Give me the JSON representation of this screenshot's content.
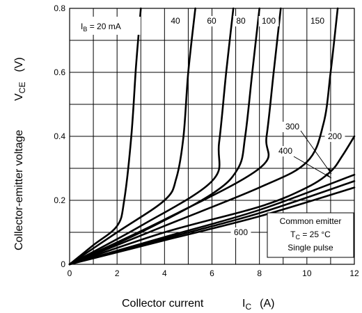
{
  "chart_data": {
    "type": "line",
    "xlabel": "Collector current",
    "xsymbol": "I",
    "xsymbol_sub": "C",
    "xunit": "(A)",
    "ylabel": "Collector-emitter voltage",
    "ysymbol": "V",
    "ysymbol_sub": "CE",
    "yunit": "(V)",
    "xlim": [
      0,
      12
    ],
    "ylim": [
      0,
      0.8
    ],
    "xticks": [
      0,
      2,
      4,
      6,
      8,
      10,
      12
    ],
    "yticks": [
      0,
      0.2,
      0.4,
      0.6,
      0.8
    ],
    "xtick_labels": [
      "0",
      "2",
      "4",
      "6",
      "8",
      "10",
      "12"
    ],
    "ytick_labels": [
      "0",
      "0.2",
      "0.4",
      "0.6",
      "0.8"
    ],
    "grid": true,
    "series": [
      {
        "name": "IB = 20 mA",
        "label": "",
        "x": [
          0,
          1,
          2,
          2.3,
          2.6,
          2.8,
          3.0
        ],
        "y": [
          0,
          0.06,
          0.12,
          0.2,
          0.4,
          0.62,
          0.8
        ]
      },
      {
        "name": "40",
        "label": "40",
        "x": [
          0,
          2,
          4,
          4.5,
          4.8,
          5.0,
          5.3
        ],
        "y": [
          0,
          0.1,
          0.2,
          0.27,
          0.4,
          0.6,
          0.8
        ]
      },
      {
        "name": "60",
        "label": "60",
        "x": [
          0,
          3,
          6,
          6.3,
          6.6,
          6.9
        ],
        "y": [
          0,
          0.12,
          0.26,
          0.38,
          0.6,
          0.8
        ]
      },
      {
        "name": "80",
        "label": "80",
        "x": [
          0,
          3,
          6,
          7.1,
          7.4,
          7.7,
          8.0
        ],
        "y": [
          0,
          0.1,
          0.22,
          0.3,
          0.4,
          0.6,
          0.8
        ]
      },
      {
        "name": "100",
        "label": "100",
        "x": [
          0,
          4,
          8,
          8.3,
          8.6,
          8.9
        ],
        "y": [
          0,
          0.14,
          0.3,
          0.4,
          0.6,
          0.8
        ]
      },
      {
        "name": "150",
        "label": "150",
        "x": [
          0,
          4,
          8,
          10,
          10.7,
          11.0,
          11.3
        ],
        "y": [
          0,
          0.12,
          0.24,
          0.32,
          0.44,
          0.6,
          0.8
        ]
      },
      {
        "name": "200",
        "label": "200",
        "x": [
          0,
          4,
          8,
          10,
          11,
          11.5,
          12
        ],
        "y": [
          0,
          0.1,
          0.18,
          0.24,
          0.29,
          0.34,
          0.4
        ]
      },
      {
        "name": "300",
        "label": "300",
        "x": [
          0,
          4,
          8,
          12
        ],
        "y": [
          0,
          0.085,
          0.17,
          0.28
        ]
      },
      {
        "name": "400",
        "label": "400",
        "x": [
          0,
          4,
          8,
          12
        ],
        "y": [
          0,
          0.08,
          0.16,
          0.26
        ]
      },
      {
        "name": "600",
        "label": "600",
        "x": [
          0,
          4,
          8,
          12
        ],
        "y": [
          0,
          0.075,
          0.15,
          0.24
        ]
      }
    ],
    "annotations": {
      "ib_label_text": "I",
      "ib_label_sub": "B",
      "ib_label_rest": " = 20 mA",
      "box_line1": "Common emitter",
      "box_line2_pre": "T",
      "box_line2_sub": "C",
      "box_line2_post": " = 25 °C",
      "box_line3": "Single pulse"
    }
  }
}
